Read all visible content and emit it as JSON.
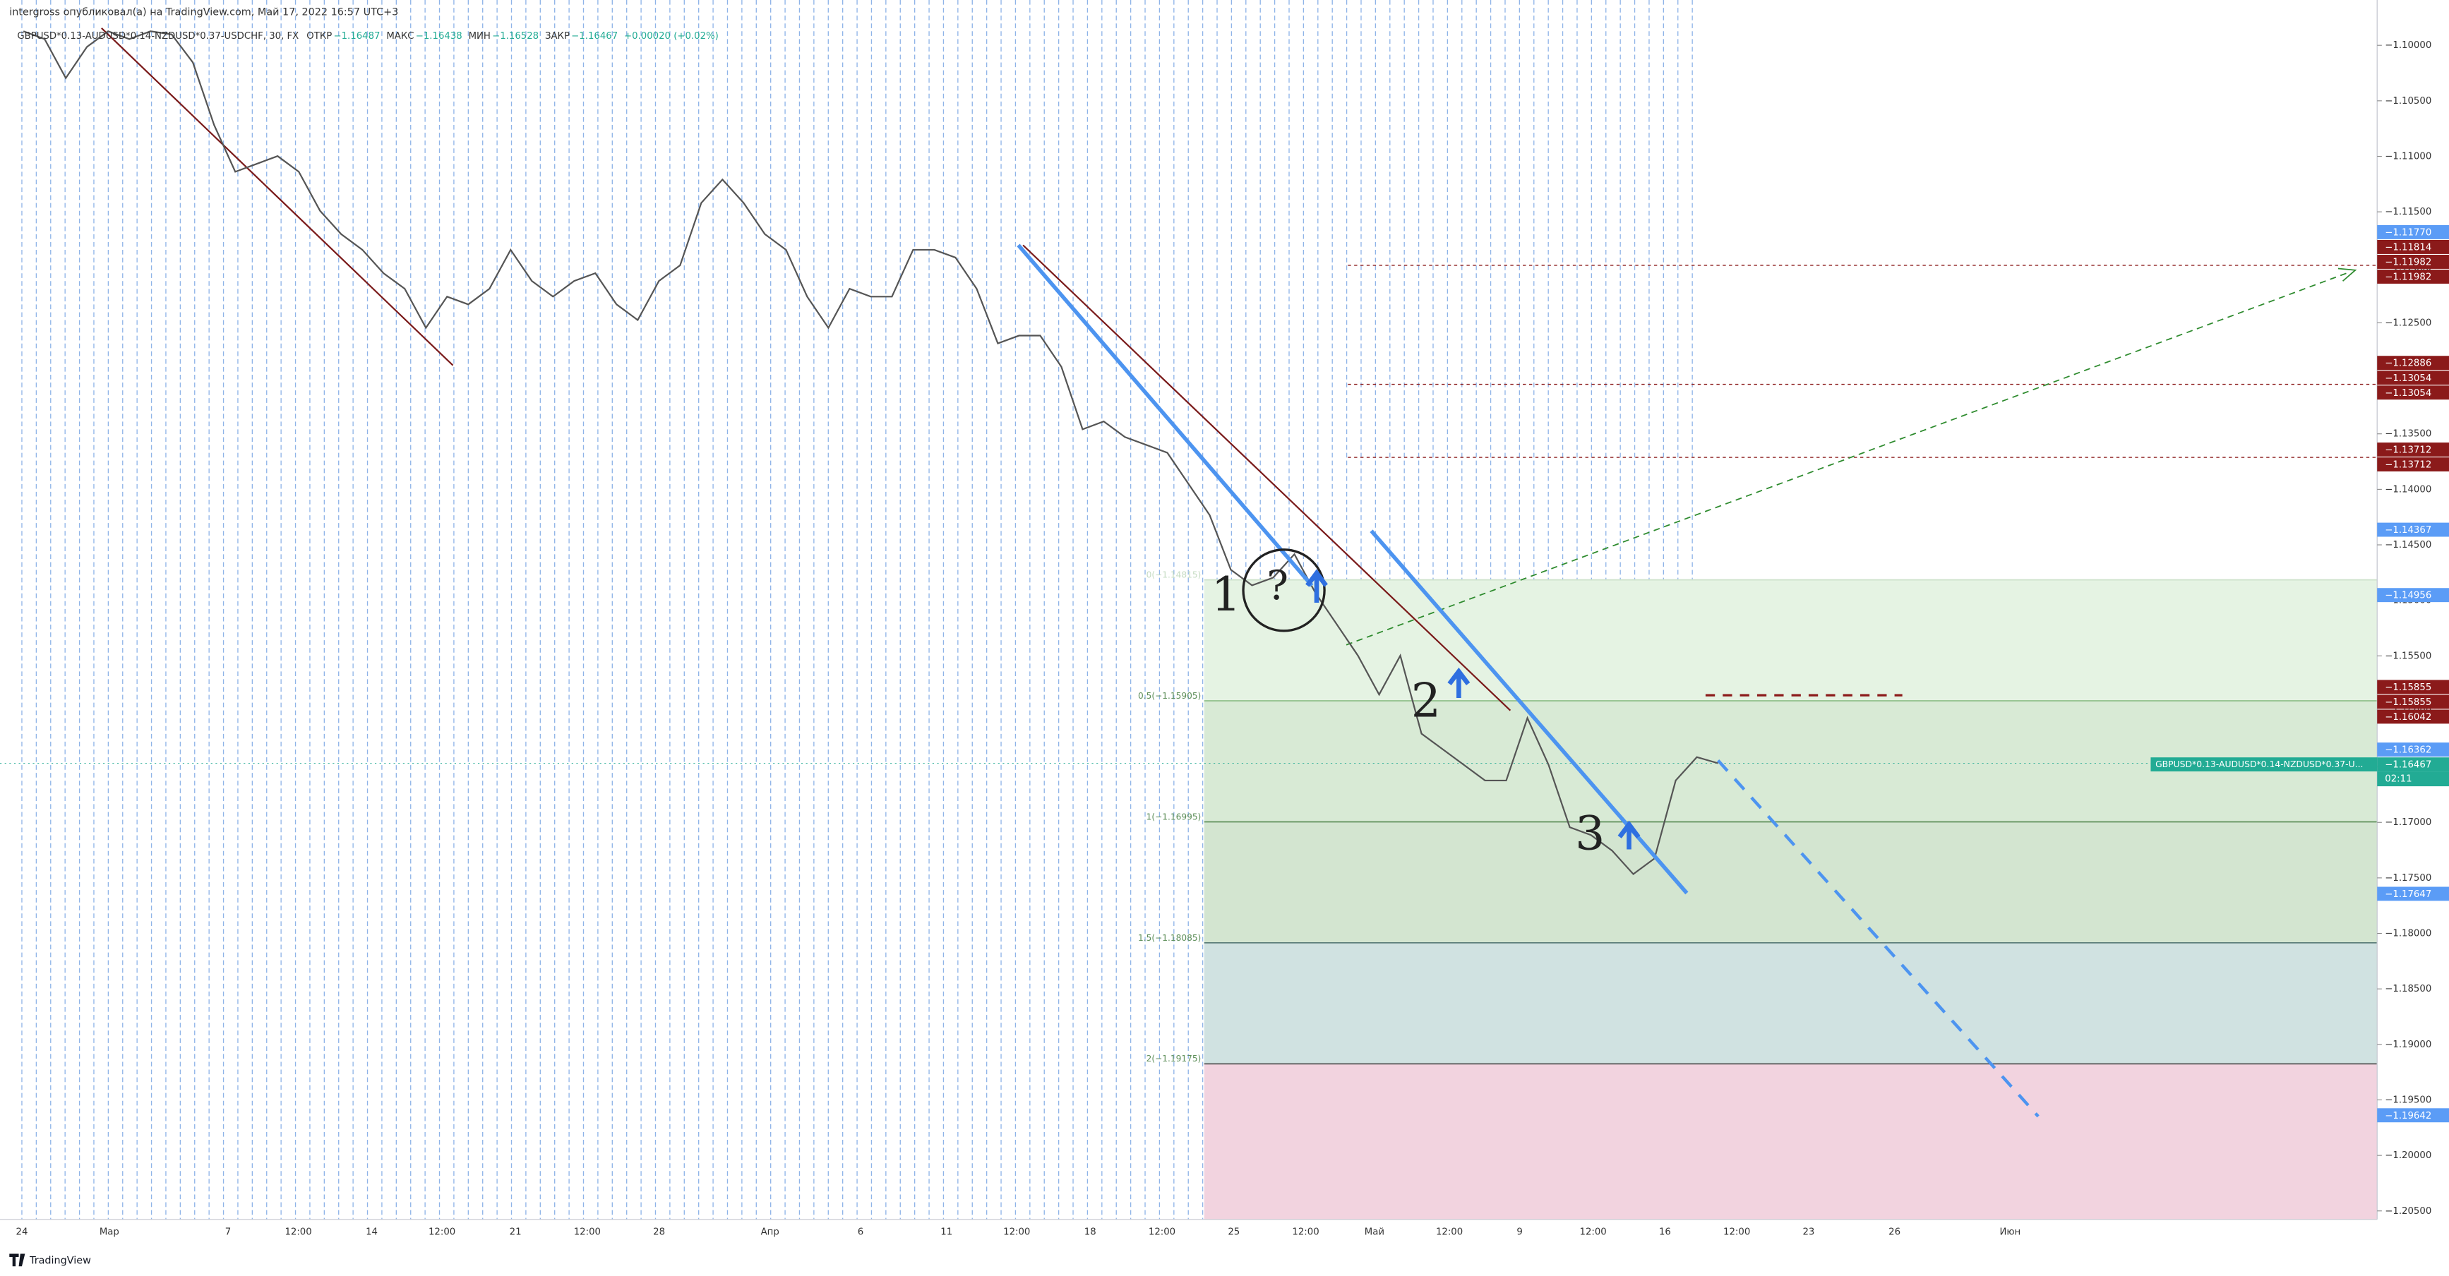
{
  "chart_data": {
    "type": "line",
    "title": "intergross опубликовал(а) на TradingView.com, Май 17, 2022 16:57 UTC+3",
    "legend": {
      "symbol": "GBPUSD*0.13-AUDUSD*0.14-NZDUSD*0.37-USDCHF, 30, FX",
      "fields": [
        {
          "name": "ОТКР",
          "value": "−1.16487"
        },
        {
          "name": "МАКС",
          "value": "−1.16438"
        },
        {
          "name": "МИН",
          "value": "−1.16528"
        },
        {
          "name": "ЗАКР",
          "value": "−1.16467"
        }
      ],
      "change": "+0.00020 (+0.02%)"
    },
    "series": [
      {
        "name": "GBPUSD*0.13-AUDUSD*0.14-NZDUSD*0.37-U...",
        "color": "#555555",
        "values": [
          -1.09873,
          -1.09944,
          -1.10295,
          -1.10014,
          -1.09873,
          -1.09944,
          -1.09873,
          -1.09902,
          -1.10155,
          -1.10717,
          -1.11139,
          -1.11069,
          -1.10998,
          -1.11139,
          -1.1149,
          -1.11701,
          -1.11842,
          -1.12053,
          -1.12193,
          -1.12545,
          -1.12264,
          -1.12334,
          -1.12193,
          -1.11842,
          -1.12123,
          -1.12264,
          -1.12123,
          -1.12053,
          -1.12334,
          -1.12475,
          -1.12123,
          -1.11982,
          -1.1142,
          -1.11209,
          -1.1142,
          -1.11701,
          -1.11842,
          -1.12264,
          -1.12545,
          -1.12193,
          -1.12264,
          -1.12264,
          -1.11842,
          -1.11842,
          -1.11912,
          -1.12193,
          -1.12685,
          -1.12615,
          -1.12615,
          -1.12896,
          -1.13459,
          -1.13388,
          -1.13529,
          -1.13599,
          -1.1367,
          -1.13951,
          -1.14232,
          -1.14724,
          -1.14865,
          -1.14795,
          -1.14584,
          -1.14935,
          -1.15216,
          -1.15498,
          -1.15849,
          -1.15498,
          -1.16201,
          -1.16341,
          -1.16482,
          -1.16623,
          -1.16623,
          -1.1606,
          -1.16482,
          -1.17044,
          -1.17114,
          -1.17255,
          -1.17466,
          -1.17325,
          -1.16623,
          -1.16412,
          -1.16467
        ]
      }
    ],
    "x_labels": [
      "24",
      "Мар",
      "7",
      "12:00",
      "14",
      "12:00",
      "21",
      "12:00",
      "28",
      "Апр",
      "6",
      "11",
      "12:00",
      "18",
      "12:00",
      "25",
      "12:00",
      "Май",
      "12:00",
      "9",
      "12:00",
      "16",
      "12:00",
      "23",
      "26",
      "Июн"
    ],
    "ylim": [
      -1.20577,
      -1.09592
    ],
    "yticks": [
      {
        "value": -1.1,
        "label": "−1.10000"
      },
      {
        "value": -1.105,
        "label": "−1.10500"
      },
      {
        "value": -1.11,
        "label": "−1.11000"
      },
      {
        "value": -1.115,
        "label": "−1.11500"
      },
      {
        "value": -1.12,
        "label": "−1.12000"
      },
      {
        "value": -1.125,
        "label": "−1.12500"
      },
      {
        "value": -1.13,
        "label": "−1.13000"
      },
      {
        "value": -1.135,
        "label": "−1.13500"
      },
      {
        "value": -1.14,
        "label": "−1.14000"
      },
      {
        "value": -1.145,
        "label": "−1.14500"
      },
      {
        "value": -1.15,
        "label": "−1.15000"
      },
      {
        "value": -1.155,
        "label": "−1.15500"
      },
      {
        "value": -1.16,
        "label": "−1.16000"
      },
      {
        "value": -1.165,
        "label": "−1.16500"
      },
      {
        "value": -1.17,
        "label": "−1.17000"
      },
      {
        "value": -1.175,
        "label": "−1.17500"
      },
      {
        "value": -1.18,
        "label": "−1.18000"
      },
      {
        "value": -1.185,
        "label": "−1.18500"
      },
      {
        "value": -1.19,
        "label": "−1.19000"
      },
      {
        "value": -1.195,
        "label": "−1.19500"
      },
      {
        "value": -1.2,
        "label": "−1.20000"
      },
      {
        "value": -1.205,
        "label": "−1.20500"
      }
    ],
    "fib_levels": [
      {
        "value": -1.14815,
        "label": "0(−1.14815)",
        "fill": "#e5f3e3",
        "line": "#cfe3cc"
      },
      {
        "value": -1.15905,
        "label": "0.5(−1.15905)",
        "fill": "#d8ead5",
        "line": "#8fbf8a"
      },
      {
        "value": -1.16995,
        "label": "1(−1.16995)",
        "fill": "#d3e5d0",
        "line": "#5e8f5a"
      },
      {
        "value": -1.18085,
        "label": "1.5(−1.18085)",
        "fill": "#d0e2e1",
        "line": "#5e7f7a"
      },
      {
        "value": -1.19175,
        "label": "2(−1.19175)",
        "fill": "#f2d3df",
        "line": "#555555"
      }
    ],
    "hlines": [
      -1.11982,
      -1.13054,
      -1.13712,
      -1.15855
    ],
    "price_tags": [
      {
        "value": -1.1177,
        "label": "−1.11770",
        "color": "#5b9cf6"
      },
      {
        "value": -1.11814,
        "label": "−1.11814",
        "color": "#8b1a1a"
      },
      {
        "value": -1.11982,
        "label": "−1.11982",
        "color": "#8b1a1a"
      },
      {
        "value": -1.11982,
        "label": "−1.11982",
        "color": "#8b1a1a"
      },
      {
        "value": -1.12886,
        "label": "−1.12886",
        "color": "#8b1a1a"
      },
      {
        "value": -1.13054,
        "label": "−1.13054",
        "color": "#8b1a1a"
      },
      {
        "value": -1.13054,
        "label": "−1.13054",
        "color": "#8b1a1a"
      },
      {
        "value": -1.13712,
        "label": "−1.13712",
        "color": "#8b1a1a"
      },
      {
        "value": -1.13712,
        "label": "−1.13712",
        "color": "#8b1a1a"
      },
      {
        "value": -1.14367,
        "label": "−1.14367",
        "color": "#5b9cf6"
      },
      {
        "value": -1.14956,
        "label": "−1.14956",
        "color": "#5b9cf6"
      },
      {
        "value": -1.15855,
        "label": "−1.15855",
        "color": "#8b1a1a"
      },
      {
        "value": -1.15855,
        "label": "−1.15855",
        "color": "#8b1a1a"
      },
      {
        "value": -1.16042,
        "label": "−1.16042",
        "color": "#8b1a1a"
      },
      {
        "value": -1.16362,
        "label": "−1.16362",
        "color": "#5b9cf6"
      },
      {
        "value": -1.16467,
        "label": "−1.16467",
        "color": "#22ab94",
        "countdown": "02:11"
      },
      {
        "value": -1.17647,
        "label": "−1.17647",
        "color": "#5b9cf6"
      },
      {
        "value": -1.19642,
        "label": "−1.19642",
        "color": "#5b9cf6"
      }
    ],
    "annotations": [
      "1",
      "?",
      "2",
      "3"
    ],
    "footer": "TradingView"
  }
}
